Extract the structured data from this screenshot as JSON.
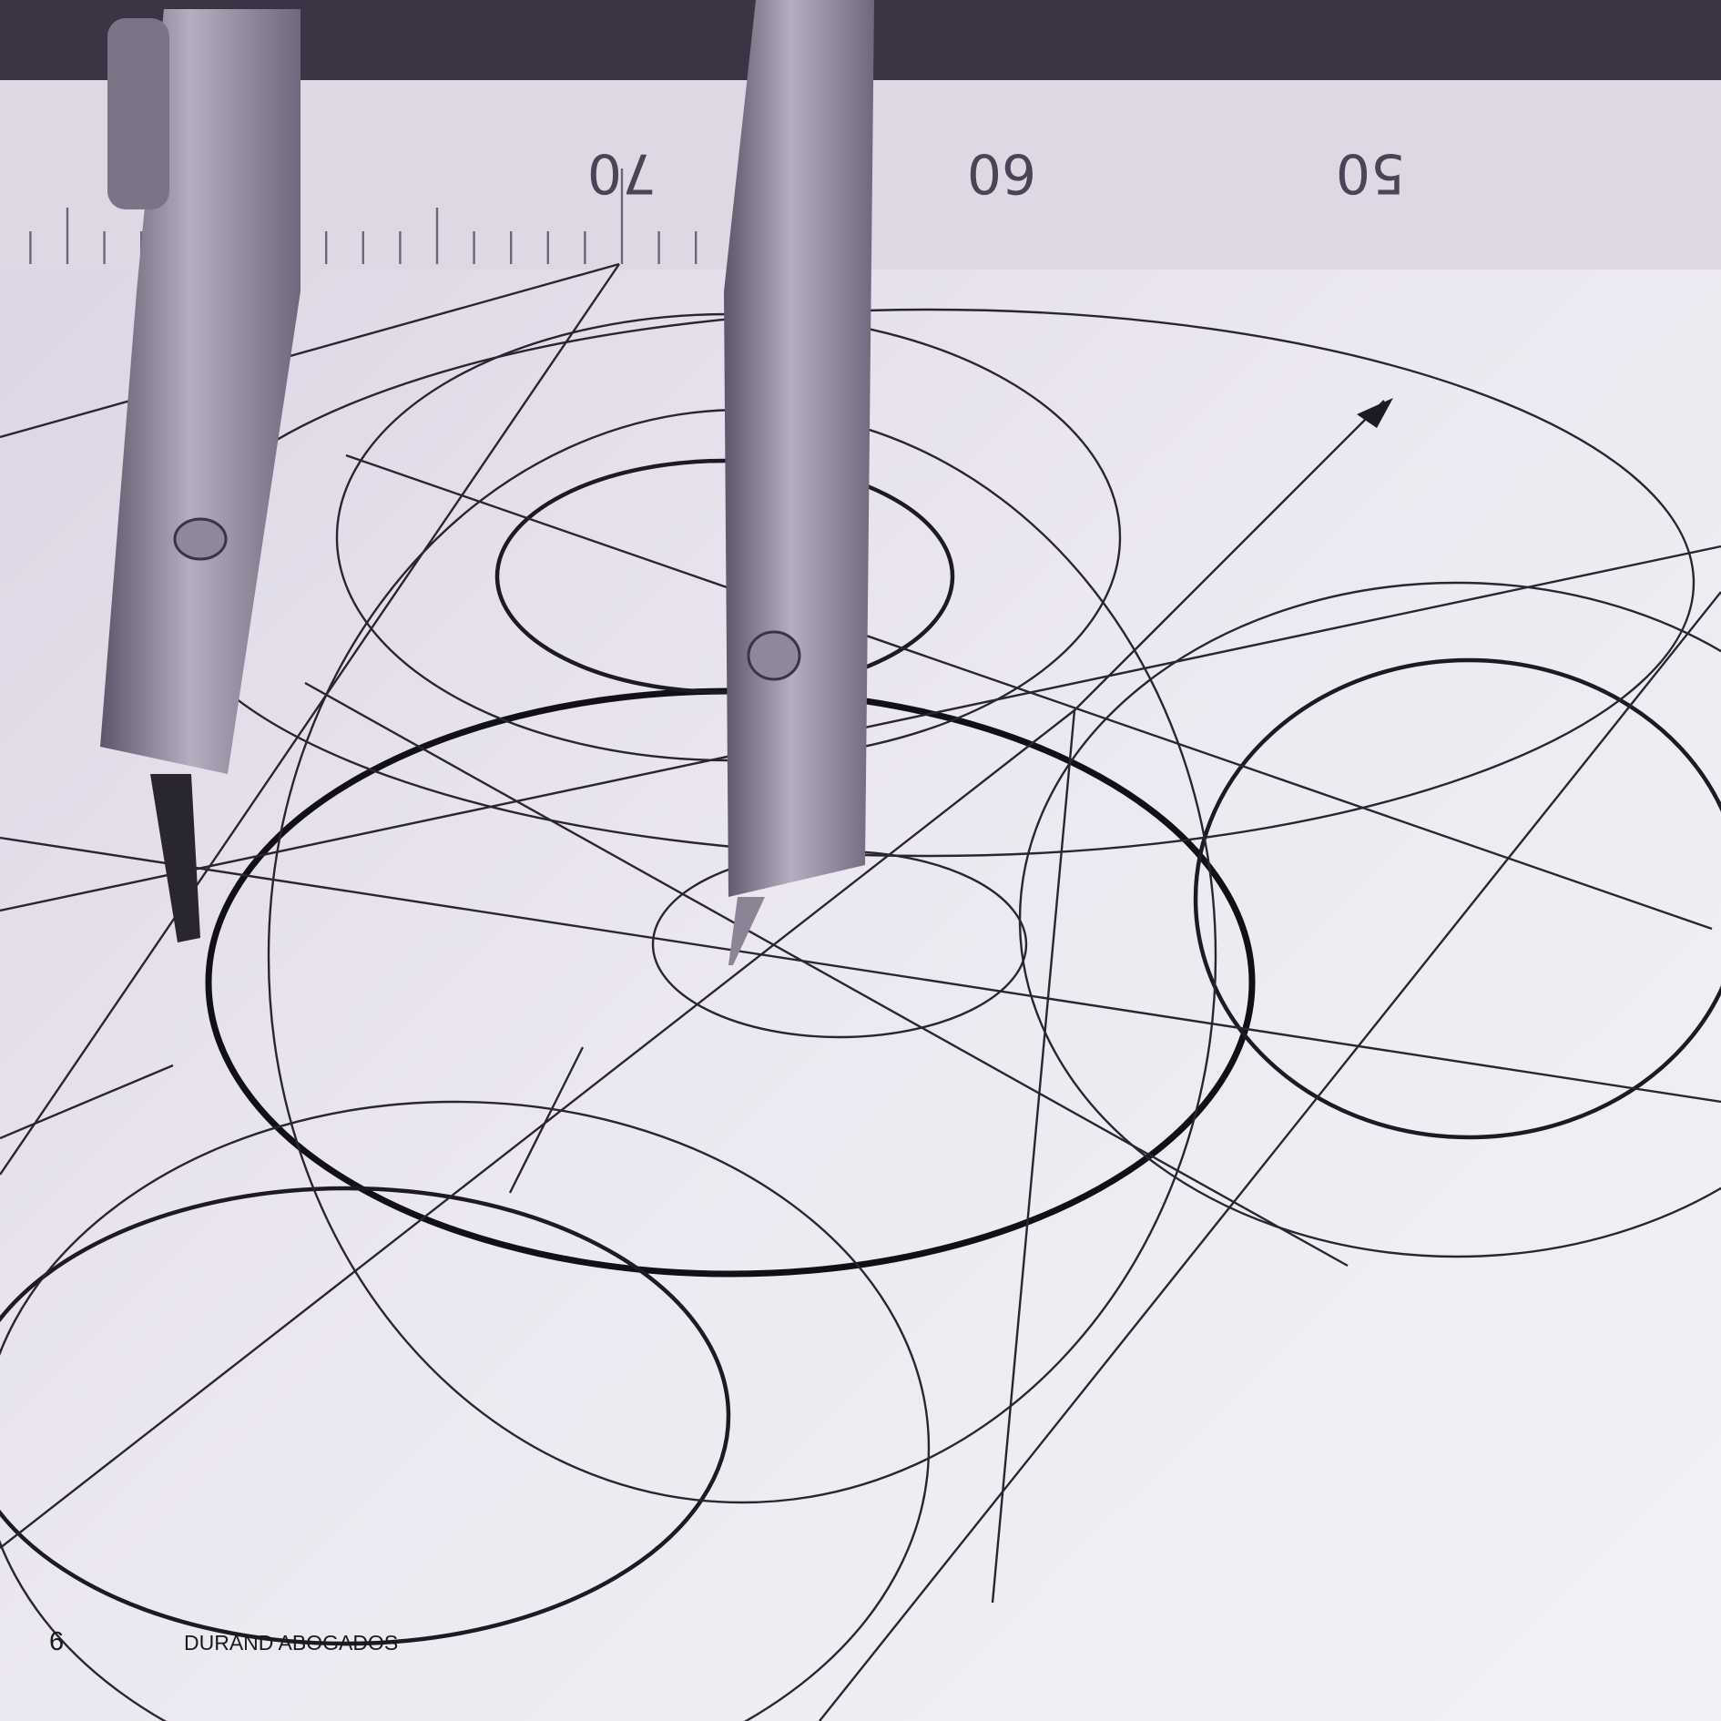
{
  "footer": {
    "page_number": "6",
    "brand": "DURAND ABOGADOS"
  },
  "photo": {
    "ruler_labels": [
      "70",
      "60",
      "50"
    ]
  }
}
